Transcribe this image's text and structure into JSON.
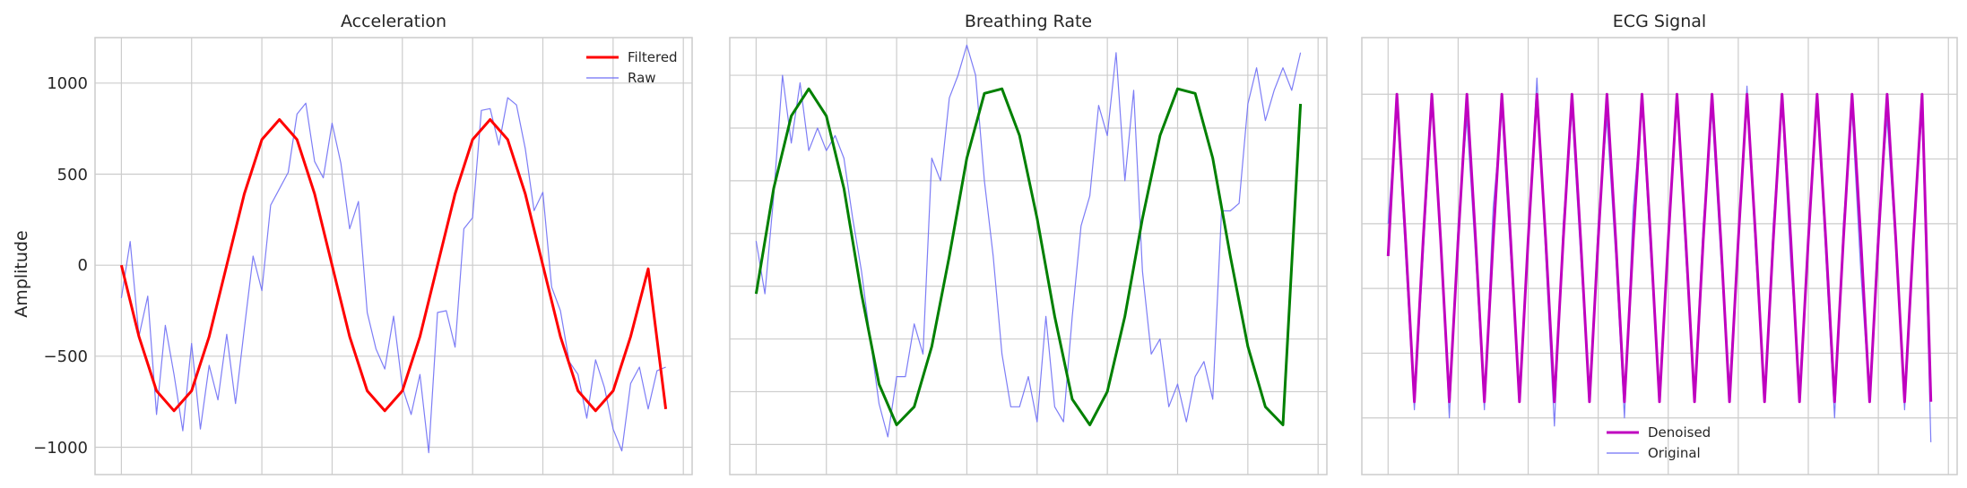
{
  "figure": {
    "ylabel": "Amplitude"
  },
  "chart_data": [
    {
      "type": "line",
      "title": "Acceleration",
      "xlabel": "",
      "ylabel": "Amplitude",
      "ylim": [
        -1150,
        1250
      ],
      "yticks": [
        1000,
        500,
        0,
        -500,
        -1000
      ],
      "ytick_labels": [
        "1000",
        "500",
        "0",
        "−500",
        "−1000"
      ],
      "xlim": [
        -1.5,
        32.5
      ],
      "grid": true,
      "legend_position": "top-right",
      "series": [
        {
          "name": "Filtered",
          "color": "#ff0000",
          "x": [
            0,
            1,
            2,
            3,
            4,
            5,
            6,
            7,
            8,
            9,
            10,
            11,
            12,
            13,
            14,
            15,
            16,
            17,
            18,
            19,
            20,
            21,
            22,
            23,
            24,
            25,
            26,
            27,
            28,
            29,
            30,
            31
          ],
          "values": [
            0,
            -392,
            -690,
            -800,
            -690,
            -392,
            0,
            392,
            690,
            800,
            690,
            392,
            0,
            -392,
            -690,
            -800,
            -690,
            -392,
            0,
            392,
            690,
            800,
            690,
            392,
            0,
            -392,
            -690,
            -800,
            -690,
            -392,
            -20,
            -790
          ]
        },
        {
          "name": "Raw",
          "color": "#6f6ff5",
          "x": [
            0,
            0.5,
            1,
            1.5,
            2,
            2.5,
            3,
            3.5,
            4,
            4.5,
            5,
            5.5,
            6,
            6.5,
            7,
            7.5,
            8,
            8.5,
            9,
            9.5,
            10,
            10.5,
            11,
            11.5,
            12,
            12.5,
            13,
            13.5,
            14,
            14.5,
            15,
            15.5,
            16,
            16.5,
            17,
            17.5,
            18,
            18.5,
            19,
            19.5,
            20,
            20.5,
            21,
            21.5,
            22,
            22.5,
            23,
            23.5,
            24,
            24.5,
            25,
            25.5,
            26,
            26.5,
            27,
            27.5,
            28,
            28.5,
            29,
            29.5,
            30,
            30.5,
            31
          ],
          "values": [
            -180,
            130,
            -390,
            -170,
            -820,
            -330,
            -600,
            -910,
            -430,
            -900,
            -550,
            -740,
            -380,
            -760,
            -350,
            50,
            -140,
            330,
            420,
            510,
            830,
            890,
            570,
            480,
            780,
            560,
            200,
            350,
            -260,
            -460,
            -570,
            -280,
            -670,
            -820,
            -600,
            -1030,
            -260,
            -250,
            -450,
            200,
            260,
            850,
            860,
            660,
            920,
            880,
            640,
            300,
            400,
            -120,
            -250,
            -530,
            -600,
            -840,
            -520,
            -670,
            -900,
            -1020,
            -650,
            -560,
            -790,
            -580,
            -560
          ]
        }
      ]
    },
    {
      "type": "line",
      "title": "Breathing Rate",
      "xlabel": "",
      "ylabel": "",
      "ylim": [
        -1.65,
        1.25
      ],
      "xlim": [
        -1.5,
        32.5
      ],
      "grid": true,
      "series": [
        {
          "name": "",
          "color": "#008000",
          "x": [
            0,
            1,
            2,
            3,
            4,
            5,
            6,
            7,
            8,
            9,
            10,
            11,
            12,
            13,
            14,
            15,
            16,
            17,
            18,
            19,
            20,
            21,
            22,
            23,
            24,
            25,
            26,
            27,
            28,
            29,
            30,
            31
          ],
          "values": [
            -0.45,
            0.25,
            0.73,
            0.91,
            0.73,
            0.25,
            -0.45,
            -1.05,
            -1.32,
            -1.2,
            -0.8,
            -0.2,
            0.45,
            0.88,
            0.91,
            0.6,
            0.05,
            -0.6,
            -1.15,
            -1.32,
            -1.1,
            -0.6,
            0.05,
            0.6,
            0.91,
            0.88,
            0.45,
            -0.2,
            -0.8,
            -1.2,
            -1.32,
            0.81
          ]
        },
        {
          "name": "",
          "color": "#6f6ff5",
          "x": [
            0,
            0.5,
            1,
            1.5,
            2,
            2.5,
            3,
            3.5,
            4,
            4.5,
            5,
            5.5,
            6,
            6.5,
            7,
            7.5,
            8,
            8.5,
            9,
            9.5,
            10,
            10.5,
            11,
            11.5,
            12,
            12.5,
            13,
            13.5,
            14,
            14.5,
            15,
            15.5,
            16,
            16.5,
            17,
            17.5,
            18,
            18.5,
            19,
            19.5,
            20,
            20.5,
            21,
            21.5,
            22,
            22.5,
            23,
            23.5,
            24,
            24.5,
            25,
            25.5,
            26,
            26.5,
            27,
            27.5,
            28,
            28.5,
            29,
            29.5,
            30,
            30.5,
            31
          ],
          "values": [
            -0.1,
            -0.45,
            0.2,
            1.0,
            0.55,
            0.95,
            0.5,
            0.65,
            0.5,
            0.6,
            0.45,
            0.05,
            -0.3,
            -0.75,
            -1.18,
            -1.4,
            -1.0,
            -1.0,
            -0.65,
            -0.85,
            0.45,
            0.3,
            0.85,
            1.0,
            1.2,
            1.0,
            0.3,
            -0.2,
            -0.85,
            -1.2,
            -1.2,
            -1.0,
            -1.3,
            -0.6,
            -1.2,
            -1.3,
            -0.6,
            0.0,
            0.2,
            0.8,
            0.6,
            1.15,
            0.3,
            0.9,
            -0.3,
            -0.85,
            -0.75,
            -1.2,
            -1.05,
            -1.3,
            -1.0,
            -0.9,
            -1.15,
            0.1,
            0.1,
            0.15,
            0.81,
            1.05,
            0.7,
            0.9,
            1.05,
            0.9,
            1.15
          ]
        }
      ]
    },
    {
      "type": "line",
      "title": "ECG Signal",
      "xlabel": "",
      "ylabel": "",
      "ylim": [
        -1.35,
        1.35
      ],
      "xlim": [
        -1.5,
        32.5
      ],
      "grid": true,
      "legend_position": "bottom-center",
      "series": [
        {
          "name": "Denoised",
          "color": "#bf00bf",
          "x": [
            0,
            0.5,
            1,
            1.5,
            2,
            2.5,
            3,
            3.5,
            4,
            4.5,
            5,
            5.5,
            6,
            6.5,
            7,
            7.5,
            8,
            8.5,
            9,
            9.5,
            10,
            10.5,
            11,
            11.5,
            12,
            12.5,
            13,
            13.5,
            14,
            14.5,
            15,
            15.5,
            16,
            16.5,
            17,
            17.5,
            18,
            18.5,
            19,
            19.5,
            20,
            20.5,
            21,
            21.5,
            22,
            22.5,
            23,
            23.5,
            24,
            24.5,
            25,
            25.5,
            26,
            26.5,
            27,
            27.5,
            28,
            28.5,
            29,
            29.5,
            30,
            30.5,
            31
          ],
          "values": [
            0,
            1.0,
            0.1,
            -0.9,
            0.1,
            1.0,
            0.1,
            -0.9,
            0.1,
            1.0,
            0.1,
            -0.9,
            0.1,
            1.0,
            0.1,
            -0.9,
            0.1,
            1.0,
            0.1,
            -0.9,
            0.1,
            1.0,
            0.1,
            -0.9,
            0.1,
            1.0,
            0.1,
            -0.9,
            0.1,
            1.0,
            0.1,
            -0.9,
            0.1,
            1.0,
            0.1,
            -0.9,
            0.1,
            1.0,
            0.1,
            -0.9,
            0.1,
            1.0,
            0.1,
            -0.9,
            0.1,
            1.0,
            0.1,
            -0.9,
            0.1,
            1.0,
            0.1,
            -0.9,
            0.1,
            1.0,
            0.1,
            -0.9,
            0.1,
            1.0,
            0.1,
            -0.9,
            0.1,
            1.0,
            -0.9
          ]
        },
        {
          "name": "Original",
          "color": "#6f6ff5",
          "x": [
            0,
            0.5,
            1,
            1.5,
            2,
            2.5,
            3,
            3.5,
            4,
            4.5,
            5,
            5.5,
            6,
            6.5,
            7,
            7.5,
            8,
            8.5,
            9,
            9.5,
            10,
            10.5,
            11,
            11.5,
            12,
            12.5,
            13,
            13.5,
            14,
            14.5,
            15,
            15.5,
            16,
            16.5,
            17,
            17.5,
            18,
            18.5,
            19,
            19.5,
            20,
            20.5,
            21,
            21.5,
            22,
            22.5,
            23,
            23.5,
            24,
            24.5,
            25,
            25.5,
            26,
            26.5,
            27,
            27.5,
            28,
            28.5,
            29,
            29.5,
            30,
            30.5,
            31
          ],
          "values": [
            0.2,
            0.95,
            0.0,
            -0.95,
            0.0,
            0.95,
            0.1,
            -1.0,
            0.2,
            0.85,
            0.0,
            -0.95,
            0.3,
            0.9,
            0.0,
            -0.85,
            0.1,
            1.1,
            0.0,
            -1.05,
            0.2,
            0.9,
            0.0,
            -0.9,
            0.2,
            0.85,
            0.0,
            -1.0,
            0.3,
            0.95,
            0.0,
            -0.85,
            0.15,
            1.0,
            0.0,
            -0.85,
            0.2,
            0.9,
            0.0,
            -0.8,
            0.1,
            1.05,
            0.0,
            -0.9,
            0.2,
            0.95,
            -0.05,
            -0.8,
            0.1,
            1.0,
            0.0,
            -1.0,
            0.2,
            0.9,
            -0.1,
            -0.9,
            0.2,
            0.85,
            0.05,
            -0.95,
            0.15,
            0.9,
            -1.15
          ]
        }
      ]
    }
  ]
}
